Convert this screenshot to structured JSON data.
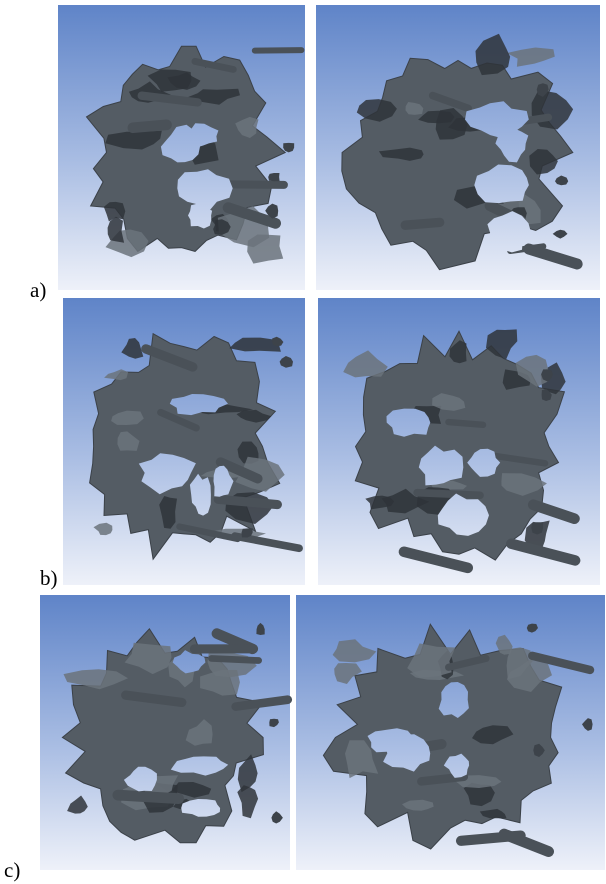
{
  "labels": [
    "a)",
    "b)",
    "c)"
  ]
}
